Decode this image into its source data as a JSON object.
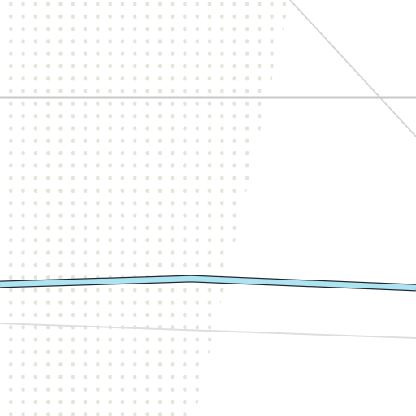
{
  "map": {
    "colors": {
      "background": "#ffffff",
      "dot_pattern": "#e6e4da",
      "major_road": "#c8c8c8",
      "minor_road": "#dedede",
      "diagonal_road": "#d6d6d6",
      "waterway_fill": "#aee3f2",
      "waterway_outline": "#1f2a30"
    },
    "features": {
      "dotted_area": "land-use-area",
      "horizontal_road": "road",
      "diagonal_road": "road",
      "lower_road": "road",
      "waterway": "river"
    }
  }
}
